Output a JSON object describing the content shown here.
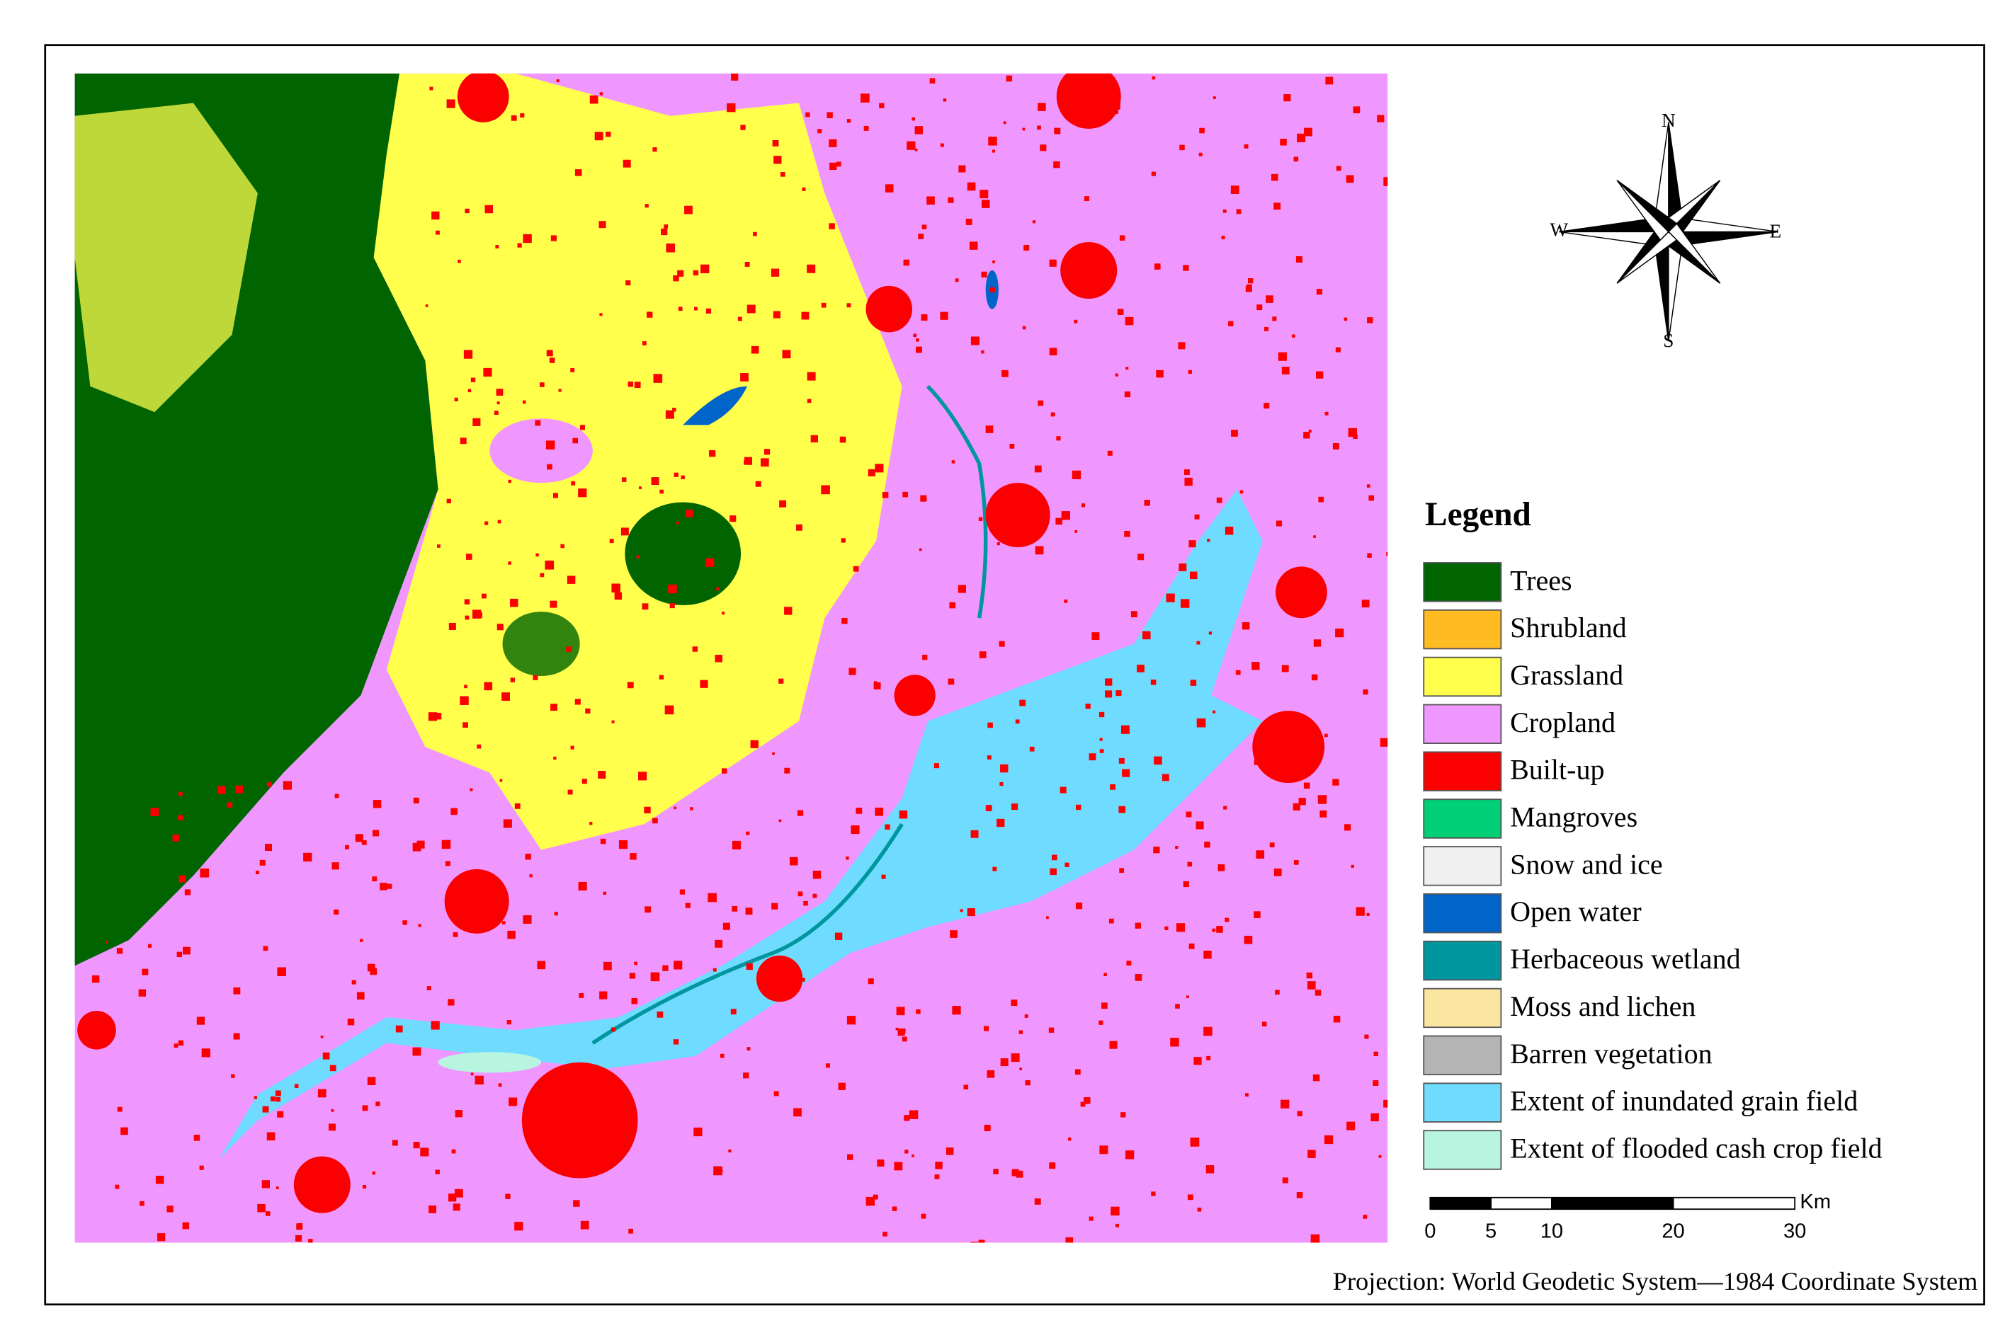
{
  "compass": {
    "north": "N",
    "south": "S",
    "west": "W",
    "east": "E"
  },
  "legend": {
    "title": "Legend",
    "items": [
      {
        "name": "Trees",
        "color": "#006400"
      },
      {
        "name": "Shrubland",
        "color": "#ffbb22"
      },
      {
        "name": "Grassland",
        "color": "#ffff4c"
      },
      {
        "name": "Cropland",
        "color": "#f096ff"
      },
      {
        "name": "Built-up",
        "color": "#fa0000"
      },
      {
        "name": "Mangroves",
        "color": "#00cf75"
      },
      {
        "name": "Snow and ice",
        "color": "#f0f0f0"
      },
      {
        "name": "Open water",
        "color": "#0064c8"
      },
      {
        "name": "Herbaceous wetland",
        "color": "#0096a0"
      },
      {
        "name": "Moss and lichen",
        "color": "#fae6a0"
      },
      {
        "name": "Barren vegetation",
        "color": "#b4b4b4"
      },
      {
        "name": "Extent of inundated grain field",
        "color": "#6fdcff"
      },
      {
        "name": "Extent of flooded cash crop field",
        "color": "#b8f5e0"
      }
    ]
  },
  "scale_bar": {
    "ticks": [
      0,
      5,
      10,
      20,
      30
    ],
    "unit": "Km"
  },
  "projection": "Projection: World Geodetic System—1984 Coordinate System"
}
